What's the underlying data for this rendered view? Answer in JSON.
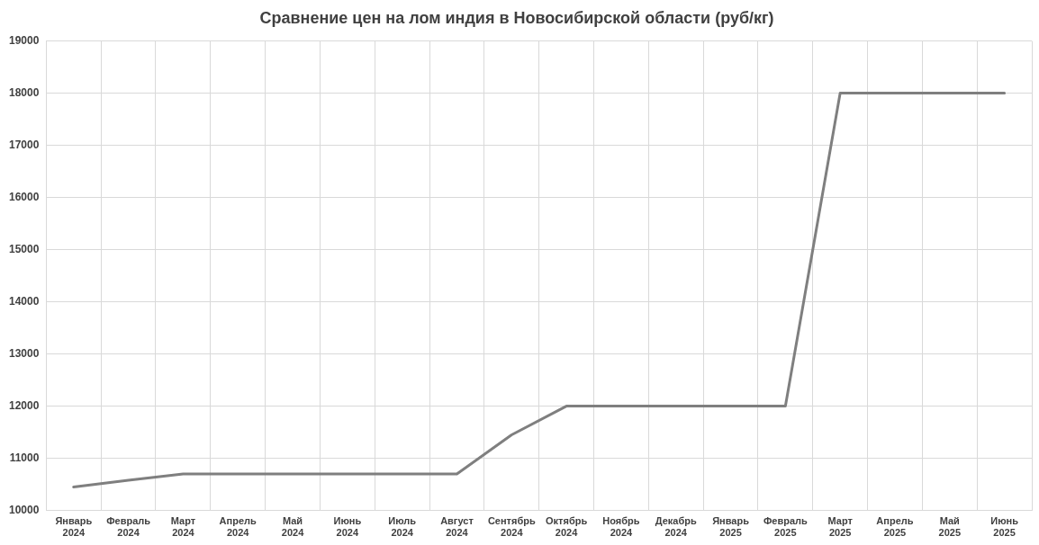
{
  "chart_data": {
    "type": "line",
    "title": "Сравнение цен на лом индия в Новосибирской области (руб/кг)",
    "categories": [
      "Январь 2024",
      "Февраль 2024",
      "Март 2024",
      "Апрель 2024",
      "Май 2024",
      "Июнь 2024",
      "Июль 2024",
      "Август 2024",
      "Сентябрь 2024",
      "Октябрь 2024",
      "Ноябрь 2024",
      "Декабрь 2024",
      "Январь 2025",
      "Февраль 2025",
      "Март 2025",
      "Апрель 2025",
      "Май 2025",
      "Июнь 2025"
    ],
    "series": [
      {
        "color": "#7f7f7f",
        "values": [
          10450,
          10580,
          10700,
          10700,
          10700,
          10700,
          10700,
          10700,
          11450,
          12000,
          12000,
          12000,
          12000,
          12000,
          18000,
          18000,
          18000,
          18000
        ]
      }
    ],
    "ylim": [
      10000,
      19000
    ],
    "yticks": [
      10000,
      11000,
      12000,
      13000,
      14000,
      15000,
      16000,
      17000,
      18000,
      19000
    ],
    "grid": true,
    "legend": false,
    "marker": "none",
    "line_style": "solid"
  }
}
